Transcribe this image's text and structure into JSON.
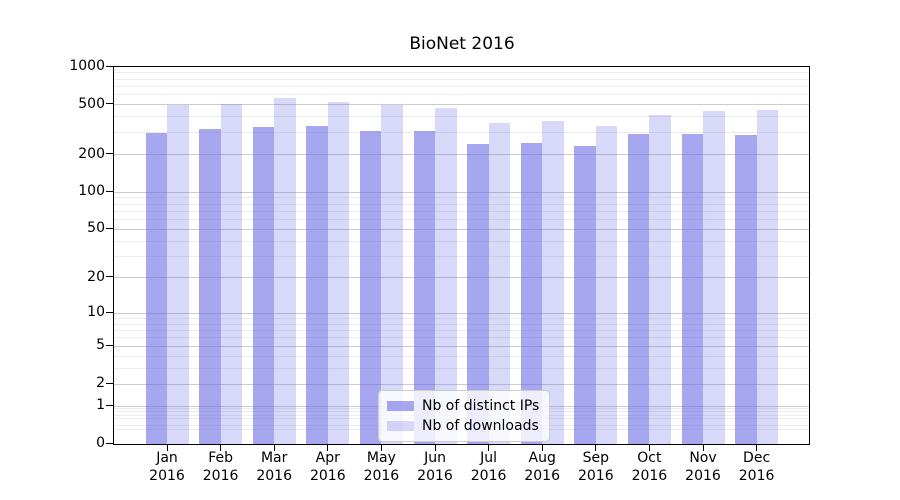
{
  "chart_data": {
    "type": "bar",
    "title": "BioNet 2016",
    "categories": [
      "Jan 2016",
      "Feb 2016",
      "Mar 2016",
      "Apr 2016",
      "May 2016",
      "Jun 2016",
      "Jul 2016",
      "Aug 2016",
      "Sep 2016",
      "Oct 2016",
      "Nov 2016",
      "Dec 2016"
    ],
    "series": [
      {
        "name": "Nb of distinct IPs",
        "color": "rgba(100,100,229,0.57)",
        "values": [
          299,
          318,
          330,
          340,
          310,
          310,
          244,
          250,
          234,
          293,
          292,
          286
        ]
      },
      {
        "name": "Nb of downloads",
        "color": "rgba(100,100,229,0.25)",
        "values": [
          496,
          505,
          571,
          527,
          496,
          472,
          355,
          372,
          336,
          418,
          444,
          455
        ]
      }
    ],
    "yscale": "log10(value+1)",
    "ylim": [
      0,
      1000
    ],
    "y_ticks": [
      0,
      1,
      2,
      5,
      10,
      20,
      50,
      100,
      200,
      500,
      1000
    ],
    "y_minor_ticks": [
      0.3,
      0.4,
      0.6,
      0.7,
      0.8,
      0.9,
      3,
      4,
      6,
      7,
      8,
      9,
      30,
      40,
      60,
      70,
      80,
      90,
      300,
      400,
      600,
      700,
      800,
      900
    ],
    "xlabel": "",
    "ylabel": "",
    "grid": true,
    "legend_position": "lower center",
    "colors": {
      "grid_major": "#cccccc",
      "grid_minor": "#ececec",
      "spine": "#000000",
      "background": "#ffffff"
    }
  }
}
